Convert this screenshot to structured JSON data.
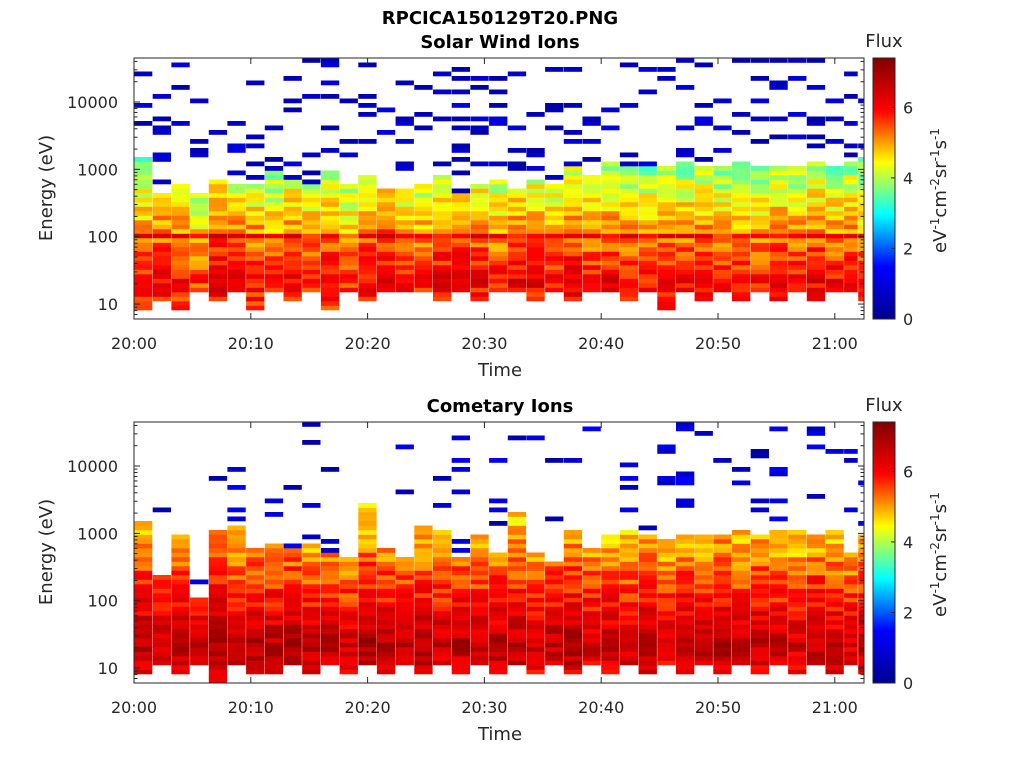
{
  "figure_title": "RPCICA150129T20.PNG",
  "colormap": [
    "#00008f",
    "#0000ff",
    "#00ffff",
    "#ffff00",
    "#ff0000",
    "#800000"
  ],
  "chart_data": [
    {
      "type": "heatmap",
      "title": "Solar Wind Ions",
      "xlabel": "Time",
      "ylabel": "Energy (eV)",
      "x_tick_labels": [
        "20:00",
        "20:10",
        "20:20",
        "20:30",
        "20:40",
        "20:50",
        "21:00"
      ],
      "x_ticks_minutes": [
        0,
        10,
        20,
        30,
        40,
        50,
        60
      ],
      "xlim_minutes": [
        0,
        62.5
      ],
      "ylim": [
        6,
        45000
      ],
      "yscale": "log",
      "y_tick_labels": [
        "10",
        "100",
        "1000",
        "10000"
      ],
      "y_ticks": [
        10,
        100,
        1000,
        10000
      ],
      "colorbar": {
        "label": "Flux",
        "unit": "eV-1cm-2sr-1s-1",
        "range": [
          0,
          7.4
        ],
        "ticks": [
          0,
          2,
          4,
          6
        ]
      },
      "profile_columns": [
        "time_minutes",
        "lower_energy_eV",
        "upper_dense_energy_eV",
        "peak_flux"
      ],
      "profile": [
        [
          0.0,
          8,
          1500,
          6.0
        ],
        [
          1.6,
          11,
          450,
          6.1
        ],
        [
          3.2,
          8,
          600,
          6.0
        ],
        [
          4.8,
          15,
          450,
          5.6
        ],
        [
          6.4,
          11,
          700,
          6.3
        ],
        [
          8.0,
          15,
          600,
          6.1
        ],
        [
          9.6,
          8,
          650,
          6.0
        ],
        [
          11.2,
          15,
          1000,
          5.8
        ],
        [
          12.8,
          11,
          700,
          6.1
        ],
        [
          14.4,
          15,
          600,
          6.0
        ],
        [
          16.0,
          8,
          900,
          6.2
        ],
        [
          17.6,
          15,
          650,
          5.8
        ],
        [
          19.2,
          11,
          800,
          6.1
        ],
        [
          20.8,
          15,
          550,
          6.3
        ],
        [
          22.4,
          15,
          500,
          6.0
        ],
        [
          24.0,
          15,
          600,
          5.9
        ],
        [
          25.6,
          11,
          800,
          6.2
        ],
        [
          27.2,
          15,
          450,
          6.3
        ],
        [
          28.8,
          11,
          650,
          6.1
        ],
        [
          30.4,
          15,
          700,
          5.9
        ],
        [
          32.0,
          15,
          500,
          6.2
        ],
        [
          33.6,
          11,
          750,
          6.2
        ],
        [
          35.2,
          15,
          650,
          6.0
        ],
        [
          36.8,
          11,
          1100,
          6.3
        ],
        [
          38.4,
          15,
          800,
          6.0
        ],
        [
          40.0,
          15,
          1300,
          6.1
        ],
        [
          41.6,
          11,
          1200,
          6.0
        ],
        [
          43.2,
          15,
          1100,
          5.9
        ],
        [
          44.8,
          8,
          1200,
          6.1
        ],
        [
          46.4,
          15,
          1300,
          6.0
        ],
        [
          48.0,
          11,
          1100,
          6.1
        ],
        [
          49.6,
          15,
          1200,
          5.9
        ],
        [
          51.2,
          11,
          1300,
          6.0
        ],
        [
          52.8,
          15,
          1200,
          5.9
        ],
        [
          54.4,
          11,
          1100,
          6.1
        ],
        [
          56.0,
          15,
          1200,
          6.0
        ],
        [
          57.6,
          11,
          1300,
          6.2
        ],
        [
          59.2,
          15,
          1200,
          6.0
        ],
        [
          60.8,
          15,
          1250,
          6.1
        ],
        [
          62.0,
          11,
          1500,
          5.9
        ]
      ],
      "sparse_counts_above": "yes"
    },
    {
      "type": "heatmap",
      "title": "Cometary Ions",
      "xlabel": "Time",
      "ylabel": "Energy (eV)",
      "x_tick_labels": [
        "20:00",
        "20:10",
        "20:20",
        "20:30",
        "20:40",
        "20:50",
        "21:00"
      ],
      "x_ticks_minutes": [
        0,
        10,
        20,
        30,
        40,
        50,
        60
      ],
      "xlim_minutes": [
        0,
        62.5
      ],
      "ylim": [
        6,
        45000
      ],
      "yscale": "log",
      "y_tick_labels": [
        "10",
        "100",
        "1000",
        "10000"
      ],
      "y_ticks": [
        10,
        100,
        1000,
        10000
      ],
      "colorbar": {
        "label": "Flux",
        "unit": "eV-1cm-2sr-1s-1",
        "range": [
          0,
          7.4
        ],
        "ticks": [
          0,
          2,
          4,
          6
        ]
      },
      "profile_columns": [
        "time_minutes",
        "lower_energy_eV",
        "upper_dense_energy_eV",
        "peak_flux"
      ],
      "profile": [
        [
          0.0,
          8,
          1500,
          6.8
        ],
        [
          1.6,
          11,
          250,
          6.6
        ],
        [
          3.2,
          8,
          900,
          6.7
        ],
        [
          4.8,
          11,
          120,
          6.5
        ],
        [
          6.4,
          6,
          1100,
          6.9
        ],
        [
          8.0,
          11,
          1300,
          6.7
        ],
        [
          9.6,
          8,
          650,
          6.8
        ],
        [
          11.2,
          8,
          700,
          6.7
        ],
        [
          12.8,
          11,
          600,
          6.8
        ],
        [
          14.4,
          8,
          700,
          6.6
        ],
        [
          16.0,
          11,
          500,
          6.7
        ],
        [
          17.6,
          8,
          450,
          6.5
        ],
        [
          19.2,
          11,
          2800,
          6.9
        ],
        [
          20.8,
          8,
          650,
          6.7
        ],
        [
          22.4,
          11,
          450,
          6.6
        ],
        [
          24.0,
          8,
          1300,
          6.8
        ],
        [
          25.6,
          11,
          1100,
          6.6
        ],
        [
          27.2,
          8,
          450,
          6.8
        ],
        [
          28.8,
          11,
          1000,
          6.6
        ],
        [
          30.4,
          8,
          550,
          6.7
        ],
        [
          32.0,
          11,
          2000,
          6.8
        ],
        [
          33.6,
          8,
          550,
          6.6
        ],
        [
          35.2,
          11,
          400,
          6.7
        ],
        [
          36.8,
          8,
          1100,
          6.8
        ],
        [
          38.4,
          11,
          650,
          6.6
        ],
        [
          40.0,
          8,
          1000,
          6.7
        ],
        [
          41.6,
          11,
          1100,
          6.6
        ],
        [
          43.2,
          8,
          1000,
          6.8
        ],
        [
          44.8,
          11,
          800,
          6.5
        ],
        [
          46.4,
          8,
          900,
          6.7
        ],
        [
          48.0,
          11,
          1000,
          6.6
        ],
        [
          49.6,
          8,
          900,
          6.8
        ],
        [
          51.2,
          11,
          1100,
          6.6
        ],
        [
          52.8,
          8,
          1000,
          6.7
        ],
        [
          54.4,
          11,
          1200,
          6.6
        ],
        [
          56.0,
          8,
          1100,
          6.5
        ],
        [
          57.6,
          11,
          1000,
          6.7
        ],
        [
          59.2,
          8,
          1100,
          6.6
        ],
        [
          60.8,
          11,
          500,
          6.4
        ],
        [
          62.0,
          8,
          900,
          6.7
        ]
      ],
      "sparse_counts_above": "yes"
    }
  ]
}
